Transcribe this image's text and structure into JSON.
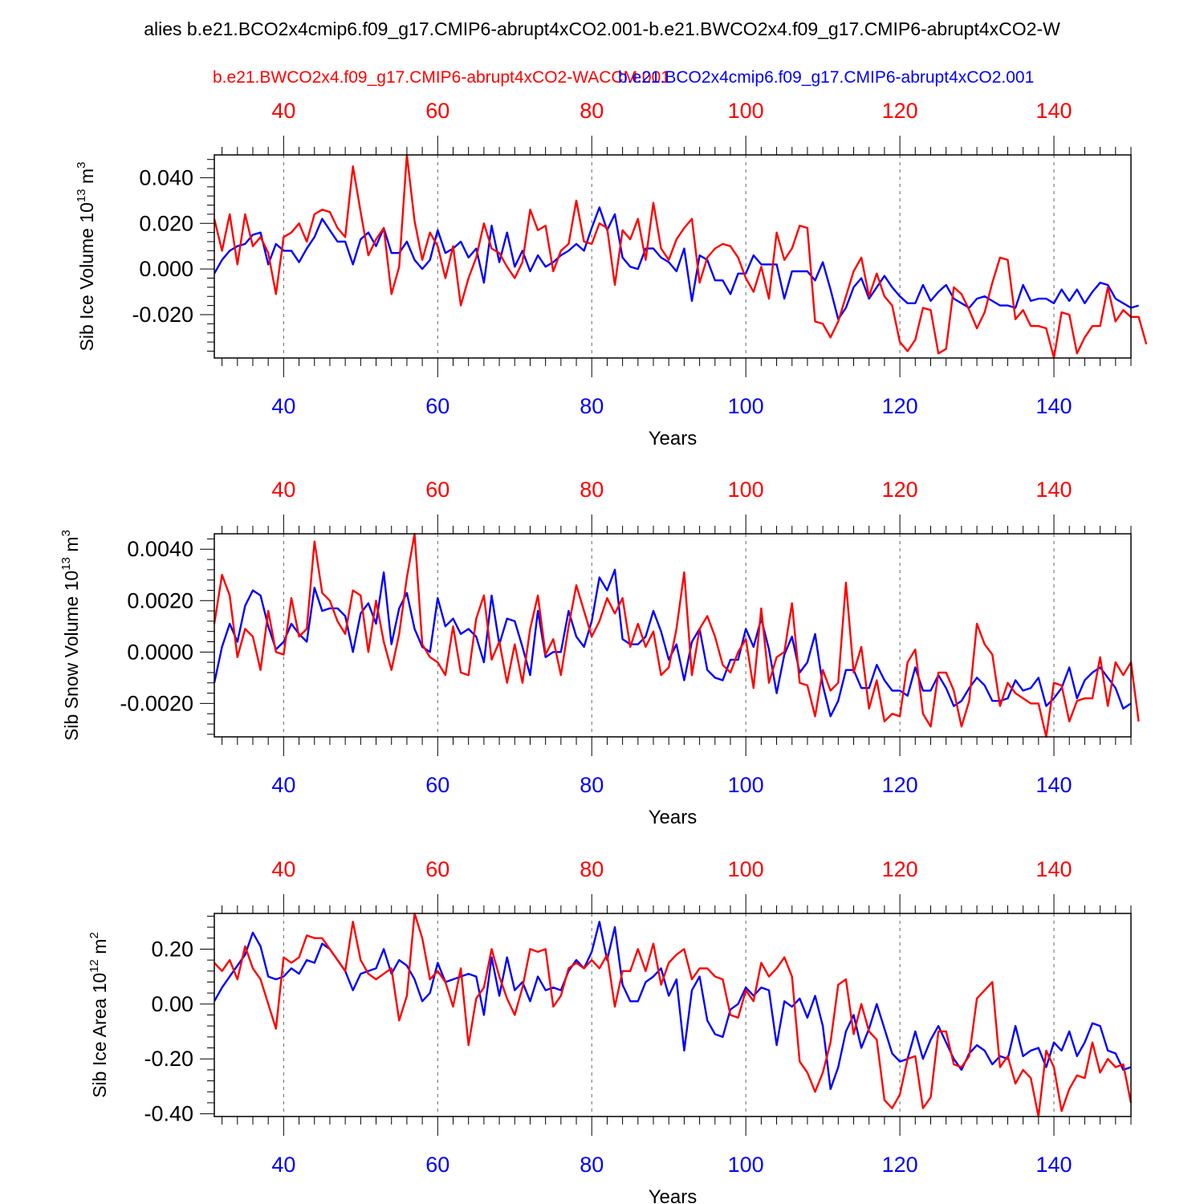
{
  "title": "alies b.e21.BCO2x4cmip6.f09_g17.CMIP6-abrupt4xCO2.001-b.e21.BWCO2x4.f09_g17.CMIP6-abrupt4xCO2-W",
  "legend": {
    "red_label": "b.e21.BWCO2x4.f09_g17.CMIP6-abrupt4xCO2-WACCM.001",
    "blue_label": "b.e21.BCO2x4cmip6.f09_g17.CMIP6-abrupt4xCO2.001"
  },
  "colors": {
    "red": "#ff0000",
    "blue": "#0000ff",
    "axis": "#000000",
    "grid": "#666666"
  },
  "chart_data": [
    {
      "type": "line",
      "ylabel": "Sib Ice Volume 10",
      "ylabel_sup": "13",
      "ylabel_unit": " m",
      "ylabel_unit_sup": "3",
      "xlabel": "Years",
      "xlim": [
        31,
        150
      ],
      "ylim": [
        -0.039,
        0.05
      ],
      "yticks": [
        -0.02,
        0.0,
        0.02,
        0.04
      ],
      "ytick_labels": [
        "-0.020",
        "0.000",
        "0.020",
        "0.040"
      ],
      "yminor_step": 0.004,
      "xticks": [
        40,
        60,
        80,
        100,
        120,
        140
      ],
      "xtick_labels": [
        "40",
        "60",
        "80",
        "100",
        "120",
        "140"
      ],
      "x_start": 31,
      "series": [
        {
          "name": "blue",
          "color": "#0000ff",
          "values": [
            -0.002,
            0.004,
            0.008,
            0.01,
            0.011,
            0.015,
            0.016,
            0.002,
            0.011,
            0.008,
            0.008,
            0.003,
            0.009,
            0.014,
            0.022,
            0.017,
            0.012,
            0.012,
            0.002,
            0.013,
            0.016,
            0.01,
            0.018,
            0.007,
            0.007,
            0.012,
            0.004,
            0.0,
            0.004,
            0.017,
            0.007,
            0.009,
            0.012,
            0.005,
            0.009,
            -0.006,
            0.019,
            0.003,
            0.016,
            0.001,
            0.008,
            -0.001,
            0.006,
            0.001,
            0.003,
            0.006,
            0.008,
            0.011,
            0.008,
            0.018,
            0.027,
            0.017,
            0.024,
            0.005,
            0.001,
            0.0,
            0.009,
            0.009,
            0.005,
            0.003,
            -0.001,
            0.009,
            -0.014,
            0.006,
            0.004,
            -0.005,
            -0.005,
            -0.011,
            -0.002,
            -0.002,
            0.006,
            0.002,
            0.002,
            0.002,
            -0.013,
            -0.001,
            -0.001,
            -0.001,
            -0.005,
            0.003,
            -0.009,
            -0.022,
            -0.017,
            -0.008,
            -0.004,
            -0.013,
            -0.008,
            -0.003,
            -0.008,
            -0.012,
            -0.015,
            -0.015,
            -0.007,
            -0.014,
            -0.01,
            -0.007,
            -0.013,
            -0.015,
            -0.017,
            -0.013,
            -0.012,
            -0.014,
            -0.016,
            -0.016,
            -0.017,
            -0.007,
            -0.014,
            -0.013,
            -0.013,
            -0.015,
            -0.009,
            -0.014,
            -0.009,
            -0.015,
            -0.01,
            -0.006,
            -0.007,
            -0.013,
            -0.015,
            -0.017,
            -0.016
          ]
        },
        {
          "name": "red",
          "color": "#ff0000",
          "values": [
            0.022,
            0.008,
            0.024,
            0.002,
            0.024,
            0.01,
            0.014,
            0.007,
            -0.011,
            0.014,
            0.016,
            0.02,
            0.012,
            0.024,
            0.026,
            0.025,
            0.018,
            0.014,
            0.045,
            0.025,
            0.006,
            0.013,
            0.018,
            -0.011,
            0.001,
            0.05,
            0.021,
            0.004,
            0.016,
            0.01,
            -0.004,
            0.01,
            -0.016,
            -0.004,
            0.005,
            0.02,
            0.009,
            0.007,
            0.001,
            -0.004,
            0.003,
            0.026,
            0.017,
            0.019,
            -0.001,
            0.008,
            0.011,
            0.03,
            0.012,
            0.011,
            0.02,
            0.018,
            -0.007,
            0.017,
            0.013,
            0.022,
            0.004,
            0.029,
            0.009,
            0.004,
            0.013,
            0.018,
            0.022,
            -0.006,
            0.005,
            0.009,
            0.011,
            0.01,
            0.005,
            -0.004,
            -0.01,
            0.001,
            -0.013,
            0.016,
            0.004,
            0.009,
            0.019,
            0.018,
            -0.023,
            -0.024,
            -0.03,
            -0.023,
            -0.012,
            -0.001,
            0.005,
            -0.012,
            -0.002,
            -0.012,
            -0.016,
            -0.032,
            -0.036,
            -0.031,
            -0.017,
            -0.018,
            -0.037,
            -0.035,
            -0.008,
            -0.011,
            -0.018,
            -0.026,
            -0.019,
            -0.006,
            0.005,
            0.004,
            -0.022,
            -0.018,
            -0.025,
            -0.025,
            -0.026,
            -0.039,
            -0.019,
            -0.02,
            -0.037,
            -0.03,
            -0.025,
            -0.025,
            -0.008,
            -0.023,
            -0.018,
            -0.021,
            -0.021,
            -0.033
          ]
        }
      ]
    },
    {
      "type": "line",
      "ylabel": "Sib Snow Volume 10",
      "ylabel_sup": "13",
      "ylabel_unit": " m",
      "ylabel_unit_sup": "3",
      "xlabel": "Years",
      "xlim": [
        31,
        150
      ],
      "ylim": [
        -0.0033,
        0.0046
      ],
      "yticks": [
        -0.002,
        0.0,
        0.002,
        0.004
      ],
      "ytick_labels": [
        "-0.0020",
        "0.0000",
        "0.0020",
        "0.0040"
      ],
      "yminor_step": 0.0004,
      "xticks": [
        40,
        60,
        80,
        100,
        120,
        140
      ],
      "xtick_labels": [
        "40",
        "60",
        "80",
        "100",
        "120",
        "140"
      ],
      "x_start": 31,
      "series": [
        {
          "name": "blue",
          "color": "#0000ff",
          "values": [
            -0.0012,
            0.0002,
            0.0011,
            0.0004,
            0.0018,
            0.0024,
            0.0022,
            0.001,
            0.0001,
            0.0004,
            0.0011,
            0.0007,
            0.0004,
            0.0025,
            0.0016,
            0.0017,
            0.0017,
            0.0014,
            0.0,
            0.0015,
            0.0019,
            0.0011,
            0.0031,
            0.0003,
            0.0017,
            0.0023,
            0.0009,
            0.0002,
            0.0,
            0.0021,
            0.001,
            0.0013,
            0.0007,
            0.0009,
            0.0006,
            -0.0004,
            0.0022,
            0.0003,
            0.0013,
            0.0012,
            0.0002,
            -0.0009,
            0.0016,
            -0.0002,
            0.0,
            0.0,
            0.0016,
            0.0006,
            0.0002,
            0.0012,
            0.0029,
            0.0024,
            0.0032,
            0.0005,
            0.0003,
            0.0003,
            0.0006,
            0.0016,
            0.0008,
            -0.0003,
            0.0003,
            -0.0011,
            0.0004,
            0.0009,
            -0.0007,
            -0.001,
            -0.0011,
            -0.0003,
            -0.0003,
            0.0009,
            0.0002,
            0.0013,
            0.0001,
            -0.0016,
            -0.0001,
            0.0006,
            -0.0008,
            -0.0004,
            0.0007,
            -0.0013,
            -0.0025,
            -0.0019,
            -0.0007,
            -0.0007,
            -0.0014,
            -0.0014,
            -0.0005,
            -0.0011,
            -0.0015,
            -0.0015,
            -0.0017,
            -0.0006,
            -0.0015,
            -0.0015,
            -0.0009,
            -0.0014,
            -0.0021,
            -0.0019,
            -0.0014,
            -0.001,
            -0.0013,
            -0.0019,
            -0.0019,
            -0.0018,
            -0.0011,
            -0.0015,
            -0.0014,
            -0.001,
            -0.0021,
            -0.0018,
            -0.0014,
            -0.0006,
            -0.0018,
            -0.0011,
            -0.0008,
            -0.0006,
            -0.001,
            -0.0014,
            -0.0022,
            -0.002
          ]
        },
        {
          "name": "red",
          "color": "#ff0000",
          "values": [
            0.0011,
            0.003,
            0.0022,
            -0.0002,
            0.0009,
            0.0006,
            -0.0007,
            0.0016,
            0.0,
            -0.0001,
            0.0021,
            0.0006,
            0.0009,
            0.0043,
            0.0023,
            0.002,
            0.0012,
            0.0007,
            0.0024,
            0.0022,
            0.0,
            0.002,
            0.0004,
            -0.0007,
            0.0007,
            0.0029,
            0.0046,
            0.0003,
            -0.0002,
            -0.0004,
            -0.0009,
            0.001,
            -0.0008,
            -0.0009,
            0.0013,
            0.0022,
            -0.0003,
            0.0004,
            -0.0012,
            0.0003,
            -0.0012,
            0.0009,
            0.0022,
            -0.0001,
            0.0005,
            -0.0009,
            0.001,
            0.0026,
            0.0016,
            0.0006,
            0.0012,
            0.0021,
            0.0015,
            0.0021,
            0.0002,
            0.0011,
            0.0002,
            0.0008,
            -0.0009,
            -0.0006,
            0.0009,
            0.0031,
            -0.0009,
            0.0009,
            0.0014,
            0.0006,
            -0.0005,
            -0.0008,
            0.0,
            0.0005,
            -0.0014,
            0.0017,
            -0.0012,
            -0.0002,
            0.0,
            0.0019,
            -0.0012,
            -0.0013,
            -0.0025,
            -0.0007,
            -0.0015,
            -0.0012,
            0.0027,
            -0.0008,
            0.0002,
            -0.0022,
            -0.0011,
            -0.0027,
            -0.0024,
            -0.0025,
            -0.0004,
            0.0001,
            -0.0024,
            -0.0029,
            -0.0008,
            -0.0008,
            -0.0015,
            -0.0029,
            -0.0019,
            0.0011,
            0.0003,
            -0.0001,
            -0.0021,
            -0.0012,
            -0.0016,
            -0.0018,
            -0.002,
            -0.002,
            -0.0033,
            -0.0012,
            -0.0013,
            -0.0027,
            -0.0019,
            -0.0018,
            -0.0018,
            -0.0002,
            -0.0021,
            -0.0004,
            -0.0009,
            -0.0004,
            -0.0027
          ]
        }
      ]
    },
    {
      "type": "line",
      "ylabel": "Sib Ice Area 10",
      "ylabel_sup": "12",
      "ylabel_unit": " m",
      "ylabel_unit_sup": "2",
      "xlabel": "Years",
      "xlim": [
        31,
        150
      ],
      "ylim": [
        -0.41,
        0.33
      ],
      "yticks": [
        -0.4,
        -0.2,
        0.0,
        0.2
      ],
      "ytick_labels": [
        "-0.40",
        "-0.20",
        "0.00",
        "0.20"
      ],
      "yminor_step": 0.04,
      "xticks": [
        40,
        60,
        80,
        100,
        120,
        140
      ],
      "xtick_labels": [
        "40",
        "60",
        "80",
        "100",
        "120",
        "140"
      ],
      "x_start": 31,
      "series": [
        {
          "name": "blue",
          "color": "#0000ff",
          "values": [
            0.01,
            0.06,
            0.1,
            0.14,
            0.18,
            0.26,
            0.21,
            0.1,
            0.09,
            0.1,
            0.13,
            0.11,
            0.16,
            0.15,
            0.22,
            0.2,
            0.16,
            0.12,
            0.05,
            0.11,
            0.12,
            0.13,
            0.2,
            0.11,
            0.16,
            0.14,
            0.09,
            0.01,
            0.04,
            0.15,
            0.08,
            0.09,
            0.1,
            0.11,
            0.1,
            -0.04,
            0.17,
            0.03,
            0.17,
            0.05,
            0.08,
            0.01,
            0.1,
            0.05,
            0.06,
            0.05,
            0.12,
            0.16,
            0.13,
            0.19,
            0.3,
            0.16,
            0.28,
            0.07,
            0.01,
            0.01,
            0.08,
            0.1,
            0.13,
            0.03,
            0.09,
            -0.17,
            0.05,
            0.1,
            -0.06,
            -0.11,
            -0.12,
            -0.02,
            0.0,
            0.06,
            0.03,
            0.06,
            0.05,
            -0.15,
            0.01,
            -0.01,
            0.02,
            -0.05,
            0.03,
            -0.08,
            -0.31,
            -0.23,
            -0.1,
            -0.04,
            -0.16,
            -0.09,
            0.0,
            -0.09,
            -0.18,
            -0.21,
            -0.2,
            -0.1,
            -0.2,
            -0.13,
            -0.08,
            -0.14,
            -0.2,
            -0.24,
            -0.18,
            -0.15,
            -0.17,
            -0.22,
            -0.19,
            -0.2,
            -0.08,
            -0.19,
            -0.17,
            -0.16,
            -0.23,
            -0.14,
            -0.17,
            -0.1,
            -0.19,
            -0.14,
            -0.07,
            -0.08,
            -0.17,
            -0.18,
            -0.24,
            -0.23
          ]
        },
        {
          "name": "red",
          "color": "#ff0000",
          "values": [
            0.15,
            0.12,
            0.16,
            0.09,
            0.21,
            0.13,
            0.09,
            0.0,
            -0.09,
            0.17,
            0.15,
            0.17,
            0.25,
            0.24,
            0.24,
            0.2,
            0.16,
            0.12,
            0.3,
            0.16,
            0.11,
            0.09,
            0.11,
            0.13,
            -0.06,
            0.03,
            0.33,
            0.24,
            0.09,
            0.12,
            0.08,
            -0.01,
            0.13,
            -0.15,
            0.02,
            0.06,
            0.2,
            0.1,
            0.02,
            -0.04,
            0.06,
            0.2,
            0.19,
            0.2,
            -0.01,
            0.03,
            0.13,
            0.15,
            0.13,
            0.16,
            0.13,
            0.18,
            -0.01,
            0.12,
            0.12,
            0.2,
            0.12,
            0.22,
            0.07,
            0.15,
            0.18,
            0.2,
            0.09,
            0.13,
            0.13,
            0.1,
            0.09,
            -0.04,
            -0.05,
            0.05,
            0.01,
            0.15,
            0.1,
            0.13,
            0.17,
            0.1,
            -0.21,
            -0.25,
            -0.32,
            -0.25,
            -0.14,
            0.07,
            0.09,
            -0.11,
            0.0,
            -0.1,
            -0.13,
            -0.35,
            -0.38,
            -0.33,
            -0.2,
            -0.19,
            -0.38,
            -0.34,
            -0.1,
            -0.1,
            -0.22,
            -0.23,
            -0.19,
            0.02,
            0.05,
            0.08,
            -0.23,
            -0.19,
            -0.29,
            -0.24,
            -0.27,
            -0.41,
            -0.17,
            -0.23,
            -0.39,
            -0.31,
            -0.26,
            -0.27,
            -0.14,
            -0.25,
            -0.2,
            -0.23,
            -0.22,
            -0.36
          ]
        }
      ]
    }
  ]
}
